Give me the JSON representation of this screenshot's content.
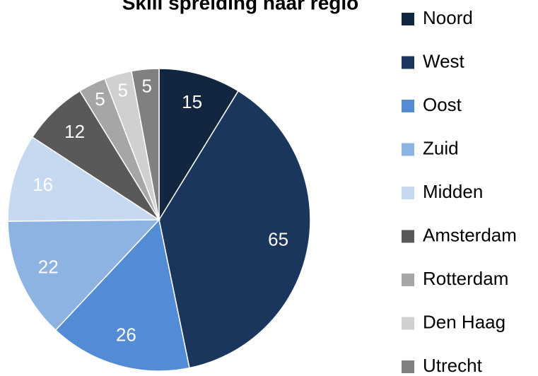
{
  "chart_data": {
    "type": "pie",
    "title": "Skill spreiding naar regio",
    "categories": [
      "Noord",
      "West",
      "Oost",
      "Zuid",
      "Midden",
      "Amsterdam",
      "Rotterdam",
      "Den Haag",
      "Utrecht"
    ],
    "values": [
      15,
      65,
      26,
      22,
      16,
      12,
      5,
      5,
      5
    ],
    "colors": [
      "#12263f",
      "#1a365d",
      "#548bd5",
      "#8db3e2",
      "#c6d9f1",
      "#595959",
      "#a6a6a6",
      "#d0d0d0",
      "#808080"
    ],
    "legend": "right"
  }
}
